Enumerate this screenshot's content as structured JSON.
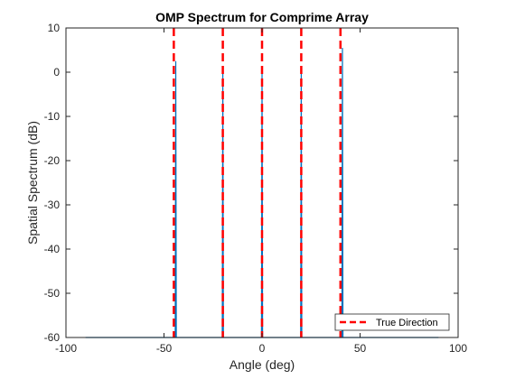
{
  "chart_data": {
    "type": "line",
    "title": "OMP Spectrum for Comprime Array",
    "xlabel": "Angle (deg)",
    "ylabel": "Spatial Spectrum (dB)",
    "xlim": [
      -100,
      100
    ],
    "ylim": [
      -60,
      10
    ],
    "xticks": [
      -100,
      -50,
      0,
      50,
      100
    ],
    "yticks": [
      -60,
      -50,
      -40,
      -30,
      -20,
      -10,
      0,
      10
    ],
    "xtick_labels": [
      "-100",
      "-50",
      "0",
      "50",
      "100"
    ],
    "ytick_labels": [
      "-60",
      "-50",
      "-40",
      "-30",
      "-20",
      "-10",
      "0",
      "10"
    ],
    "grid": false,
    "legend_position": "bottom-right",
    "series": [
      {
        "kind": "spectrum",
        "color": "#0072bd",
        "x_range": [
          -90,
          90
        ],
        "baseline": -60,
        "peaks": [
          {
            "x": -44,
            "y": 2.5
          },
          {
            "x": -20,
            "y": 0
          },
          {
            "x": 0,
            "y": 0
          },
          {
            "x": 20,
            "y": 0
          },
          {
            "x": 41,
            "y": 5.5
          }
        ]
      },
      {
        "name": "True Direction",
        "kind": "vlines",
        "color": "#ff0000",
        "style": "dashed",
        "x": [
          -45,
          -20,
          0,
          20,
          40
        ]
      }
    ],
    "legend": [
      {
        "label": "True Direction",
        "color": "#ff0000",
        "style": "dashed"
      }
    ]
  }
}
